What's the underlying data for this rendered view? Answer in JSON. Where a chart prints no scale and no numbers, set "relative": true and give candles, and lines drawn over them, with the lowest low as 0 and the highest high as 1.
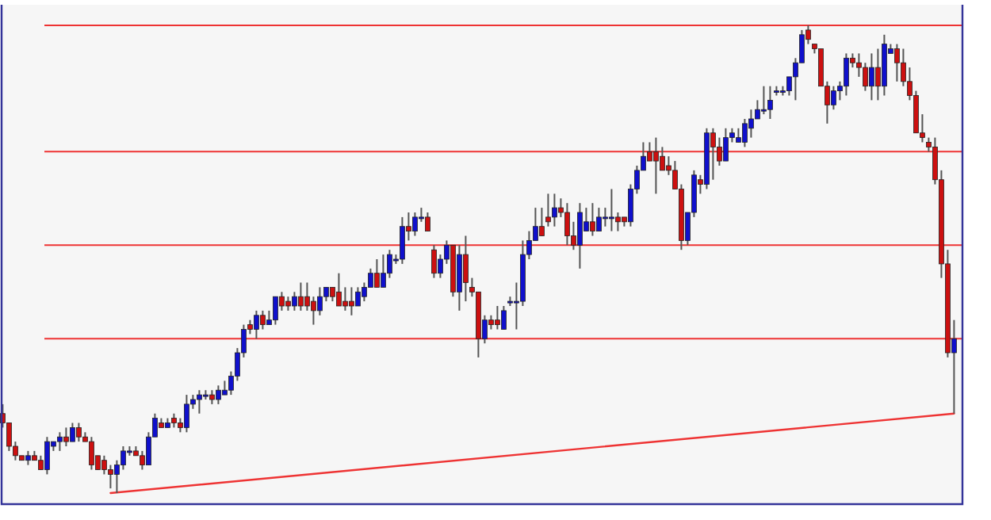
{
  "chart_data": {
    "type": "candlestick",
    "relative": true,
    "categories": [
      null,
      null,
      null,
      null,
      null,
      null,
      null,
      null,
      null,
      null,
      null,
      null,
      null,
      null,
      null,
      null,
      null,
      null,
      null,
      null,
      null,
      null,
      null,
      null,
      null,
      null,
      null,
      null,
      null,
      null,
      null,
      null,
      null,
      null,
      null,
      null,
      null,
      null,
      null,
      null,
      null,
      null,
      null,
      null,
      null,
      null,
      null,
      null,
      null,
      null,
      null,
      null,
      null,
      null,
      null,
      null,
      null,
      null,
      null,
      null,
      null,
      null,
      null,
      null,
      null,
      null,
      null,
      null,
      null,
      null,
      null,
      null,
      null,
      null,
      null,
      null,
      null,
      null,
      null,
      null,
      null,
      null,
      null,
      null,
      null,
      null,
      null,
      null,
      null,
      null,
      null,
      null,
      null,
      null,
      null,
      null,
      null,
      null,
      null,
      null,
      null,
      null,
      null,
      null,
      null,
      null,
      null,
      null,
      null,
      null,
      null,
      null,
      null,
      null,
      null,
      null,
      null,
      null,
      null,
      null,
      null,
      null,
      null,
      null,
      null,
      null,
      null,
      null,
      null,
      null,
      null,
      null,
      null,
      null,
      null,
      null,
      null,
      null,
      null,
      null,
      null,
      null,
      null,
      null,
      null,
      null,
      null,
      null,
      null,
      null,
      null
    ],
    "ohlc": [
      [
        0.17,
        0.19,
        0.14,
        0.15
      ],
      [
        0.15,
        0.15,
        0.09,
        0.1
      ],
      [
        0.1,
        0.11,
        0.07,
        0.08
      ],
      [
        0.08,
        0.08,
        0.07,
        0.07
      ],
      [
        0.07,
        0.09,
        0.06,
        0.08
      ],
      [
        0.08,
        0.09,
        0.07,
        0.07
      ],
      [
        0.07,
        0.08,
        0.05,
        0.05
      ],
      [
        0.05,
        0.12,
        0.04,
        0.11
      ],
      [
        0.1,
        0.11,
        0.09,
        0.11
      ],
      [
        0.11,
        0.13,
        0.09,
        0.12
      ],
      [
        0.12,
        0.14,
        0.1,
        0.11
      ],
      [
        0.11,
        0.15,
        0.11,
        0.14
      ],
      [
        0.14,
        0.15,
        0.11,
        0.12
      ],
      [
        0.12,
        0.13,
        0.11,
        0.11
      ],
      [
        0.11,
        0.12,
        0.05,
        0.06
      ],
      [
        0.08,
        0.08,
        0.05,
        0.05
      ],
      [
        0.07,
        0.08,
        0.04,
        0.05
      ],
      [
        0.05,
        0.06,
        0.01,
        0.04
      ],
      [
        0.04,
        0.07,
        0,
        0.06
      ],
      [
        0.06,
        0.1,
        0.05,
        0.09
      ],
      [
        0.09,
        0.1,
        0.08,
        0.09
      ],
      [
        0.09,
        0.1,
        0.08,
        0.08
      ],
      [
        0.08,
        0.09,
        0.05,
        0.06
      ],
      [
        0.06,
        0.13,
        0.06,
        0.12
      ],
      [
        0.12,
        0.17,
        0.12,
        0.16
      ],
      [
        0.15,
        0.16,
        0.14,
        0.14
      ],
      [
        0.14,
        0.16,
        0.14,
        0.15
      ],
      [
        0.16,
        0.17,
        0.14,
        0.15
      ],
      [
        0.15,
        0.16,
        0.13,
        0.14
      ],
      [
        0.14,
        0.21,
        0.13,
        0.19
      ],
      [
        0.19,
        0.21,
        0.18,
        0.2
      ],
      [
        0.2,
        0.22,
        0.17,
        0.21
      ],
      [
        0.21,
        0.22,
        0.2,
        0.21
      ],
      [
        0.21,
        0.22,
        0.19,
        0.2
      ],
      [
        0.2,
        0.23,
        0.19,
        0.22
      ],
      [
        0.21,
        0.24,
        0.21,
        0.22
      ],
      [
        0.22,
        0.26,
        0.21,
        0.25
      ],
      [
        0.25,
        0.31,
        0.24,
        0.3
      ],
      [
        0.3,
        0.36,
        0.29,
        0.35
      ],
      [
        0.36,
        0.37,
        0.34,
        0.35
      ],
      [
        0.35,
        0.39,
        0.33,
        0.38
      ],
      [
        0.38,
        0.39,
        0.35,
        0.36
      ],
      [
        0.36,
        0.39,
        0.36,
        0.37
      ],
      [
        0.37,
        0.42,
        0.36,
        0.42
      ],
      [
        0.42,
        0.43,
        0.39,
        0.4
      ],
      [
        0.41,
        0.42,
        0.39,
        0.4
      ],
      [
        0.4,
        0.43,
        0.39,
        0.42
      ],
      [
        0.42,
        0.45,
        0.39,
        0.4
      ],
      [
        0.42,
        0.45,
        0.39,
        0.4
      ],
      [
        0.41,
        0.42,
        0.36,
        0.39
      ],
      [
        0.39,
        0.44,
        0.38,
        0.42
      ],
      [
        0.42,
        0.44,
        0.41,
        0.44
      ],
      [
        0.44,
        0.44,
        0.41,
        0.42
      ],
      [
        0.43,
        0.47,
        0.4,
        0.4
      ],
      [
        0.41,
        0.44,
        0.39,
        0.4
      ],
      [
        0.41,
        0.44,
        0.38,
        0.4
      ],
      [
        0.4,
        0.44,
        0.4,
        0.43
      ],
      [
        0.42,
        0.45,
        0.41,
        0.44
      ],
      [
        0.44,
        0.48,
        0.44,
        0.47
      ],
      [
        0.47,
        0.5,
        0.44,
        0.44
      ],
      [
        0.44,
        0.51,
        0.44,
        0.47
      ],
      [
        0.47,
        0.52,
        0.46,
        0.51
      ],
      [
        0.5,
        0.51,
        0.49,
        0.5
      ],
      [
        0.5,
        0.59,
        0.49,
        0.57
      ],
      [
        0.57,
        0.6,
        0.54,
        0.56
      ],
      [
        0.56,
        0.6,
        0.55,
        0.59
      ],
      [
        0.59,
        0.61,
        0.58,
        0.59
      ],
      [
        0.59,
        0.6,
        0.56,
        0.56
      ],
      [
        0.52,
        0.53,
        0.46,
        0.47
      ],
      [
        0.47,
        0.51,
        0.46,
        0.5
      ],
      [
        0.5,
        0.54,
        0.49,
        0.53
      ],
      [
        0.53,
        0.53,
        0.42,
        0.43
      ],
      [
        0.43,
        0.53,
        0.39,
        0.51
      ],
      [
        0.51,
        0.55,
        0.41,
        0.45
      ],
      [
        0.44,
        0.46,
        0.42,
        0.43
      ],
      [
        0.43,
        0.43,
        0.29,
        0.33
      ],
      [
        0.33,
        0.38,
        0.32,
        0.37
      ],
      [
        0.37,
        0.38,
        0.35,
        0.36
      ],
      [
        0.37,
        0.4,
        0.35,
        0.36
      ],
      [
        0.35,
        0.4,
        0.35,
        0.39
      ],
      [
        0.41,
        0.42,
        0.4,
        0.41
      ],
      [
        0.41,
        0.45,
        0.35,
        0.41
      ],
      [
        0.41,
        0.54,
        0.4,
        0.51
      ],
      [
        0.51,
        0.56,
        0.5,
        0.54
      ],
      [
        0.54,
        0.61,
        0.54,
        0.57
      ],
      [
        0.57,
        0.61,
        0.55,
        0.55
      ],
      [
        0.59,
        0.64,
        0.57,
        0.58
      ],
      [
        0.59,
        0.64,
        0.57,
        0.61
      ],
      [
        0.61,
        0.63,
        0.59,
        0.6
      ],
      [
        0.6,
        0.62,
        0.53,
        0.55
      ],
      [
        0.55,
        0.58,
        0.52,
        0.53
      ],
      [
        0.53,
        0.62,
        0.48,
        0.6
      ],
      [
        0.56,
        0.61,
        0.56,
        0.58
      ],
      [
        0.58,
        0.62,
        0.55,
        0.56
      ],
      [
        0.56,
        0.61,
        0.56,
        0.59
      ],
      [
        0.59,
        0.61,
        0.57,
        0.59
      ],
      [
        0.59,
        0.65,
        0.56,
        0.59
      ],
      [
        0.59,
        0.6,
        0.56,
        0.58
      ],
      [
        0.59,
        0.59,
        0.57,
        0.58
      ],
      [
        0.58,
        0.66,
        0.57,
        0.65
      ],
      [
        0.65,
        0.7,
        0.64,
        0.69
      ],
      [
        0.69,
        0.75,
        0.69,
        0.72
      ],
      [
        0.73,
        0.75,
        0.71,
        0.71
      ],
      [
        0.73,
        0.76,
        0.64,
        0.71
      ],
      [
        0.72,
        0.74,
        0.69,
        0.69
      ],
      [
        0.7,
        0.72,
        0.68,
        0.69
      ],
      [
        0.69,
        0.71,
        0.65,
        0.65
      ],
      [
        0.65,
        0.66,
        0.52,
        0.54
      ],
      [
        0.54,
        0.6,
        0.53,
        0.6
      ],
      [
        0.6,
        0.69,
        0.59,
        0.68
      ],
      [
        0.67,
        0.68,
        0.64,
        0.66
      ],
      [
        0.66,
        0.78,
        0.65,
        0.77
      ],
      [
        0.77,
        0.78,
        0.67,
        0.74
      ],
      [
        0.74,
        0.76,
        0.7,
        0.71
      ],
      [
        0.71,
        0.78,
        0.71,
        0.76
      ],
      [
        0.76,
        0.78,
        0.75,
        0.77
      ],
      [
        0.75,
        0.78,
        0.75,
        0.76
      ],
      [
        0.75,
        0.8,
        0.74,
        0.79
      ],
      [
        0.78,
        0.82,
        0.76,
        0.8
      ],
      [
        0.8,
        0.84,
        0.8,
        0.82
      ],
      [
        0.82,
        0.87,
        0.81,
        0.82
      ],
      [
        0.82,
        0.87,
        0.8,
        0.84
      ],
      [
        0.86,
        0.87,
        0.85,
        0.86
      ],
      [
        0.86,
        0.87,
        0.85,
        0.86
      ],
      [
        0.86,
        0.89,
        0.85,
        0.89
      ],
      [
        0.89,
        0.93,
        0.84,
        0.92
      ],
      [
        0.92,
        0.99,
        0.92,
        0.98
      ],
      [
        0.99,
        1,
        0.96,
        0.97
      ],
      [
        0.96,
        0.96,
        0.94,
        0.95
      ],
      [
        0.95,
        0.95,
        0.87,
        0.87
      ],
      [
        0.87,
        0.88,
        0.79,
        0.83
      ],
      [
        0.83,
        0.87,
        0.82,
        0.86
      ],
      [
        0.86,
        0.88,
        0.84,
        0.87
      ],
      [
        0.87,
        0.94,
        0.85,
        0.93
      ],
      [
        0.93,
        0.94,
        0.91,
        0.92
      ],
      [
        0.92,
        0.94,
        0.89,
        0.91
      ],
      [
        0.91,
        0.92,
        0.86,
        0.87
      ],
      [
        0.87,
        0.94,
        0.84,
        0.91
      ],
      [
        0.91,
        0.95,
        0.84,
        0.87
      ],
      [
        0.87,
        0.98,
        0.85,
        0.96
      ],
      [
        0.94,
        0.96,
        0.94,
        0.95
      ],
      [
        0.95,
        0.96,
        0.88,
        0.92
      ],
      [
        0.92,
        0.95,
        0.87,
        0.88
      ],
      [
        0.88,
        0.91,
        0.84,
        0.85
      ],
      [
        0.85,
        0.86,
        0.77,
        0.77
      ],
      [
        0.77,
        0.81,
        0.75,
        0.76
      ],
      [
        0.75,
        0.76,
        0.73,
        0.74
      ],
      [
        0.74,
        0.76,
        0.66,
        0.67
      ],
      [
        0.67,
        0.69,
        0.46,
        0.49
      ],
      [
        0.49,
        0.52,
        0.29,
        0.3
      ],
      [
        0.3,
        0.37,
        0.17,
        0.33
      ]
    ],
    "series": [
      {
        "type": "line",
        "color": "#ee3333",
        "values": [
          null,
          null,
          null,
          null,
          null,
          null,
          null,
          null,
          null,
          null,
          null,
          null,
          null,
          null,
          null,
          null,
          null,
          0,
          null,
          null,
          null,
          null,
          null,
          null,
          null,
          null,
          null,
          null,
          null,
          null,
          null,
          null,
          null,
          null,
          null,
          null,
          null,
          null,
          null,
          null,
          null,
          null,
          null,
          null,
          null,
          null,
          null,
          null,
          null,
          null,
          null,
          null,
          null,
          null,
          null,
          null,
          null,
          null,
          null,
          null,
          null,
          null,
          null,
          null,
          null,
          null,
          null,
          null,
          null,
          null,
          null,
          null,
          null,
          null,
          null,
          null,
          null,
          null,
          null,
          null,
          null,
          null,
          null,
          null,
          null,
          null,
          null,
          null,
          null,
          null,
          null,
          null,
          null,
          null,
          null,
          null,
          null,
          null,
          null,
          null,
          null,
          null,
          null,
          null,
          null,
          null,
          null,
          null,
          null,
          null,
          null,
          null,
          null,
          null,
          null,
          null,
          null,
          null,
          null,
          null,
          null,
          null,
          null,
          null,
          null,
          null,
          null,
          null,
          null,
          null,
          null,
          null,
          null,
          null,
          null,
          null,
          null,
          null,
          null,
          null,
          null,
          null,
          null,
          null,
          null,
          null,
          null,
          null,
          null,
          null,
          0.17
        ]
      }
    ],
    "ref_lines": [
      {
        "axis": "y",
        "value": 1,
        "color": "#ee3333"
      },
      {
        "axis": "y",
        "value": 0.73,
        "color": "#ee3333"
      },
      {
        "axis": "y",
        "value": 0.53,
        "color": "#ee3333"
      },
      {
        "axis": "y",
        "value": 0.33,
        "color": "#ee3333"
      }
    ]
  }
}
